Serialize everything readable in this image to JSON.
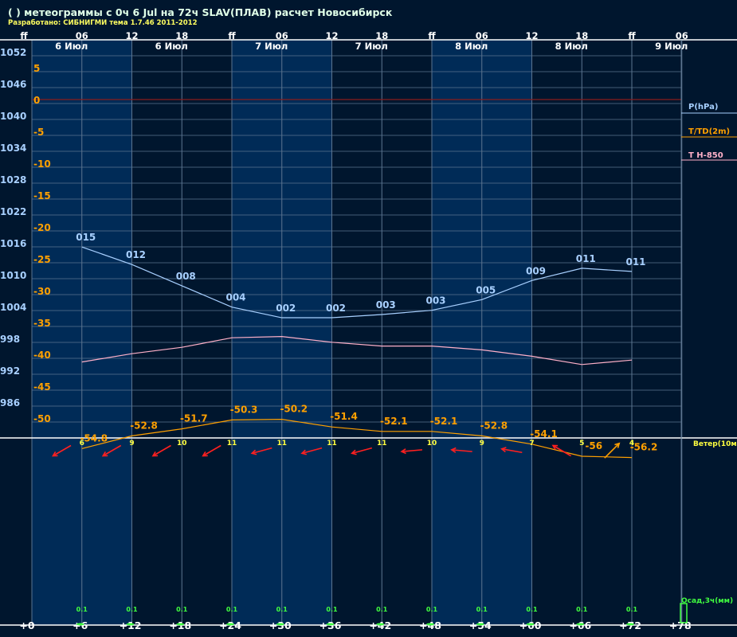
{
  "header": {
    "title": "( ) метеограммы с  0ч 6 Jul на 72ч SLAV(ПЛАВ) расчет Новосибирск",
    "subtitle": "Разработано: СИБНИГМИ тема 1.7.46 2011-2012"
  },
  "colors": {
    "background": "#00162e",
    "band": "#002b57",
    "grid": "#5d7590",
    "pressure": "#a8d0ff",
    "temperature": "#ffa000",
    "t850": "#ffb0c8",
    "zero_line": "#8a1c1c",
    "wind_red": "#ff2020",
    "wind_orange": "#ffa000",
    "wind_speed": "#ffff40",
    "precip": "#40ff40",
    "title": "#e0ffe8",
    "subtitle": "#ffff60"
  },
  "top_axis": {
    "hour_labels": [
      "ff",
      "06",
      "12",
      "18",
      "ff",
      "06",
      "12",
      "18",
      "ff",
      "06",
      "12",
      "18",
      "ff",
      "06"
    ],
    "day_labels": [
      "6 Июл",
      "6 Июл",
      "7 Июл",
      "7 Июл",
      "8 Июл",
      "8 Июл",
      "9 Июл"
    ]
  },
  "legend": {
    "pressure": "P(hPa)",
    "temperature": "T/TD(2m)",
    "t850": "T H-850",
    "wind": "Ветер(10м",
    "precip": "Осад,3ч(мм)"
  },
  "chart_data": {
    "type": "line",
    "x_hours": [
      6,
      12,
      18,
      24,
      30,
      36,
      42,
      48,
      54,
      60,
      66,
      72
    ],
    "x_axis_labels": [
      "+0",
      "+6",
      "+12",
      "+18",
      "+24",
      "+30",
      "+36",
      "+42",
      "+48",
      "+54",
      "+60",
      "+66",
      "+72",
      "+78"
    ],
    "pressure_axis": {
      "labels": [
        "1052",
        "1046",
        "1040",
        "1034",
        "1028",
        "1022",
        "1016",
        "1010",
        "1004",
        "998",
        "992",
        "986"
      ],
      "range": [
        980,
        1052
      ]
    },
    "temperature_axis": {
      "labels": [
        "5",
        "0",
        "-5",
        "-10",
        "-15",
        "-20",
        "-25",
        "-30",
        "-35",
        "-40",
        "-45",
        "-50"
      ],
      "range": [
        -55,
        5
      ]
    },
    "series": [
      {
        "name": "P(hPa)",
        "values": [
          1015.3,
          1012.0,
          1008.0,
          1004.0,
          1002.0,
          1002.0,
          1002.6,
          1003.4,
          1005.4,
          1009.0,
          1011.3,
          1010.7
        ],
        "labels": [
          "015",
          "012",
          "008",
          "004",
          "002",
          "002",
          "003",
          "003",
          "005",
          "009",
          "011",
          "011"
        ]
      },
      {
        "name": "T/TD(2m)",
        "values": [
          -54.8,
          -52.8,
          -51.7,
          -50.3,
          -50.2,
          -51.4,
          -52.1,
          -52.1,
          -52.8,
          -54.1,
          -56.0,
          -56.2
        ],
        "labels": [
          "-54.8",
          "-52.8",
          "-51.7",
          "-50.3",
          "-50.2",
          "-51.4",
          "-52.1",
          "-52.1",
          "-52.8",
          "-54.1",
          "-56",
          "-56.2"
        ]
      },
      {
        "name": "T H-850",
        "values": [
          -41.2,
          -39.9,
          -38.9,
          -37.4,
          -37.2,
          -38.1,
          -38.7,
          -38.7,
          -39.3,
          -40.3,
          -41.6,
          -40.9
        ]
      }
    ],
    "wind": {
      "speeds": [
        "6",
        "9",
        "10",
        "11",
        "11",
        "11",
        "11",
        "10",
        "9",
        "7",
        "5",
        "4"
      ],
      "directions_deg": [
        60,
        60,
        60,
        60,
        75,
        75,
        75,
        85,
        95,
        100,
        120,
        225
      ],
      "colors": [
        "red",
        "red",
        "red",
        "red",
        "red",
        "red",
        "red",
        "red",
        "red",
        "red",
        "red",
        "orange"
      ]
    },
    "precip": {
      "labels": [
        "0.1",
        "0.1",
        "0.1",
        "0.1",
        "0.1",
        "0.1",
        "0.1",
        "0.1",
        "0.1",
        "0.1",
        "0.1",
        "0.1"
      ],
      "values": [
        0.1,
        0.1,
        0.1,
        0.1,
        0.1,
        0.1,
        0.1,
        0.1,
        0.1,
        0.1,
        0.1,
        0.1
      ]
    }
  }
}
